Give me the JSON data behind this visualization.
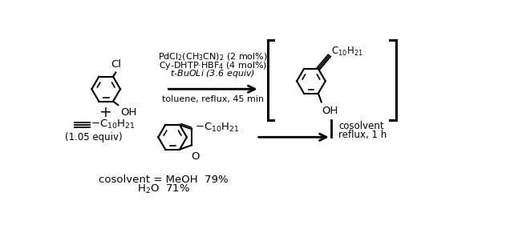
{
  "background_color": "#ffffff",
  "text_color": "#000000",
  "reagents_line1": "PdCl$_2$(CH$_3$CN)$_2$ (2 mol%)",
  "reagents_line2": "Cy-DHTP·HBF$_4$ (4 mol%)",
  "reagents_line3": "$t$-BuOLi (3.6 equiv)",
  "conditions_line1": "toluene, reflux, 45 min",
  "cosolvent_label": "cosolvent",
  "reflux_label": "reflux, 1 h",
  "equiv_label": "(1.05 equiv)",
  "yield_line1": "cosolvent = MeOH  79%",
  "yield_line2": "H$_2$O  71%",
  "fontsize": 9.5
}
